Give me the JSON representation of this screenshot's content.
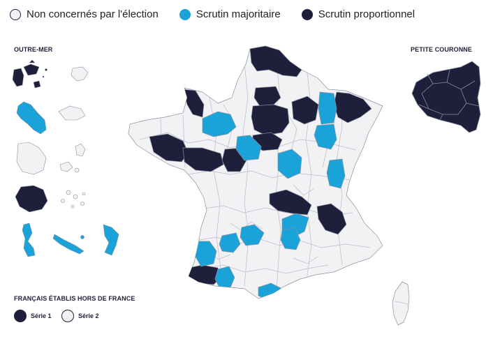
{
  "colors": {
    "non_concernes": "#f2f2f4",
    "majoritaire": "#1aa3d9",
    "proportionnel": "#1e1f3b",
    "border": "#8c8fa0"
  },
  "legend": [
    {
      "label": "Non concernés par l'élection",
      "key": "non_concernes"
    },
    {
      "label": "Scrutin majoritaire",
      "key": "majoritaire"
    },
    {
      "label": "Scrutin proportionnel",
      "key": "proportionnel"
    }
  ],
  "sections": {
    "outre_mer": "OUTRE-MER",
    "petite_couronne": "PETITE COURONNE",
    "hors_de_france": "FRANÇAIS ÉTABLIS HORS DE FRANCE"
  },
  "series": [
    {
      "label": "Série 1",
      "key": "proportionnel"
    },
    {
      "label": "Série 2",
      "key": "non_concernes"
    }
  ],
  "overseas": [
    {
      "name": "guadeloupe",
      "key": "proportionnel"
    },
    {
      "name": "martinique",
      "key": "majoritaire"
    },
    {
      "name": "guyane",
      "key": "non_concernes"
    },
    {
      "name": "reunion",
      "key": "proportionnel"
    },
    {
      "name": "saint-pierre-et-miquelon",
      "key": "majoritaire"
    },
    {
      "name": "mayotte",
      "key": "majoritaire"
    }
  ]
}
